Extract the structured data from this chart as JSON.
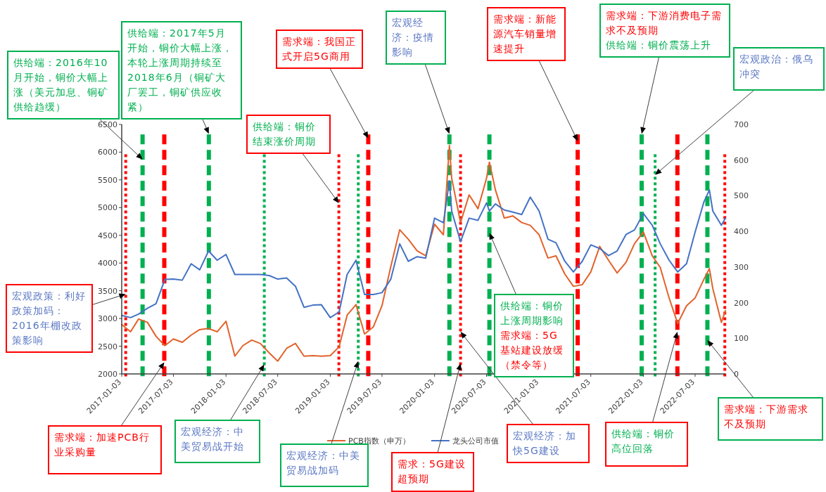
{
  "chart_data": {
    "type": "line",
    "legend": "bottom",
    "grid": false,
    "marker": "none",
    "line_style": "solid",
    "x": [
      "2017-01-03",
      "2017-02-03",
      "2017-03-03",
      "2017-04-03",
      "2017-05-03",
      "2017-06-03",
      "2017-07-03",
      "2017-08-03",
      "2017-09-03",
      "2017-10-03",
      "2017-11-03",
      "2017-12-03",
      "2018-01-03",
      "2018-02-03",
      "2018-03-03",
      "2018-04-03",
      "2018-05-03",
      "2018-06-03",
      "2018-07-03",
      "2018-08-03",
      "2018-09-03",
      "2018-10-03",
      "2018-11-03",
      "2018-12-03",
      "2019-01-03",
      "2019-02-03",
      "2019-03-03",
      "2019-04-03",
      "2019-05-03",
      "2019-06-03",
      "2019-07-03",
      "2019-08-03",
      "2019-09-03",
      "2019-10-03",
      "2019-11-03",
      "2019-12-03",
      "2020-01-03",
      "2020-02-03",
      "2020-02-24",
      "2020-03-03",
      "2020-04-03",
      "2020-05-03",
      "2020-06-03",
      "2020-07-03",
      "2020-07-13",
      "2020-08-03",
      "2020-09-03",
      "2020-10-03",
      "2020-11-03",
      "2020-12-03",
      "2021-01-03",
      "2021-02-03",
      "2021-03-03",
      "2021-04-03",
      "2021-05-03",
      "2021-06-03",
      "2021-07-03",
      "2021-08-03",
      "2021-09-03",
      "2021-10-03",
      "2021-11-03",
      "2021-12-03",
      "2022-01-03",
      "2022-02-03",
      "2022-03-03",
      "2022-04-03",
      "2022-05-03",
      "2022-06-03",
      "2022-07-03",
      "2022-08-03",
      "2022-08-22",
      "2022-09-03",
      "2022-10-03",
      "2022-10-17"
    ],
    "series": [
      {
        "name": "PCB指数（申万）",
        "color": "#e2622b",
        "values": [
          2890,
          2760,
          2990,
          2930,
          2680,
          2510,
          2630,
          2570,
          2700,
          2800,
          2820,
          2760,
          2950,
          2320,
          2510,
          2610,
          2550,
          2380,
          2230,
          2460,
          2550,
          2320,
          2330,
          2320,
          2330,
          2490,
          3060,
          3250,
          2720,
          2850,
          3230,
          3940,
          4600,
          4430,
          4220,
          4130,
          4700,
          4510,
          6120,
          5530,
          4730,
          5230,
          4980,
          5530,
          5820,
          5320,
          4810,
          4850,
          4730,
          4680,
          4510,
          4090,
          4130,
          3800,
          3580,
          3610,
          3840,
          4300,
          4050,
          3820,
          4010,
          4350,
          4560,
          4130,
          3920,
          3370,
          2910,
          3230,
          3370,
          3710,
          3900,
          3540,
          2930,
          3140
        ]
      },
      {
        "name": "龙头公司市值",
        "color": "#4472c4",
        "axis": "y2",
        "values": [
          164,
          158,
          168,
          184,
          197,
          265,
          266,
          263,
          309,
          292,
          345,
          319,
          335,
          279,
          279,
          279,
          279,
          276,
          266,
          269,
          246,
          187,
          193,
          194,
          158,
          174,
          279,
          319,
          223,
          223,
          228,
          266,
          365,
          316,
          329,
          325,
          437,
          424,
          542,
          457,
          371,
          437,
          431,
          480,
          457,
          477,
          460,
          454,
          447,
          496,
          457,
          378,
          368,
          316,
          286,
          316,
          362,
          352,
          332,
          345,
          391,
          404,
          450,
          417,
          365,
          319,
          286,
          309,
          398,
          483,
          516,
          457,
          417,
          437
        ]
      }
    ],
    "xlim": [
      "2017-01-03",
      "2022-10-17"
    ],
    "xticks": [
      "2017-01-03",
      "2017-07-03",
      "2018-01-03",
      "2018-07-03",
      "2019-01-03",
      "2019-07-03",
      "2020-01-03",
      "2020-07-03",
      "2021-01-03",
      "2021-07-03",
      "2022-01-03",
      "2022-07-03"
    ],
    "ylim": [
      2000,
      6500
    ],
    "yticks": [
      2000,
      2500,
      3000,
      3500,
      4000,
      4500,
      5000,
      5500,
      6000,
      6500
    ],
    "y2lim": [
      0,
      700
    ],
    "y2ticks": [
      0,
      100,
      200,
      300,
      400,
      500,
      600,
      700
    ],
    "ref_lines": [
      {
        "axis": "x",
        "value": "2017-01-17",
        "color": "#ff0000",
        "line_style": "dotted"
      },
      {
        "axis": "x",
        "value": "2017-03-17",
        "color": "#00b050",
        "line_style": "dashed"
      },
      {
        "axis": "x",
        "value": "2017-06-01",
        "color": "#ff0000",
        "line_style": "dashed"
      },
      {
        "axis": "x",
        "value": "2017-11-04",
        "color": "#00b050",
        "line_style": "dashed"
      },
      {
        "axis": "x",
        "value": "2018-05-17",
        "color": "#00b050",
        "line_style": "dotted"
      },
      {
        "axis": "x",
        "value": "2019-02-02",
        "color": "#ff0000",
        "line_style": "dotted"
      },
      {
        "axis": "x",
        "value": "2019-04-11",
        "color": "#00b050",
        "line_style": "dotted"
      },
      {
        "axis": "x",
        "value": "2019-05-16",
        "color": "#ff0000",
        "line_style": "dashed"
      },
      {
        "axis": "x",
        "value": "2020-02-24",
        "color": "#00b050",
        "line_style": "dashed"
      },
      {
        "axis": "x",
        "value": "2020-04-03",
        "color": "#ff0000",
        "line_style": "dotted"
      },
      {
        "axis": "x",
        "value": "2020-07-13",
        "color": "#00b050",
        "line_style": "dashed"
      },
      {
        "axis": "x",
        "value": "2021-05-18",
        "color": "#ff0000",
        "line_style": "dashed"
      },
      {
        "axis": "x",
        "value": "2021-12-28",
        "color": "#00b050",
        "line_style": "dashed"
      },
      {
        "axis": "x",
        "value": "2022-02-13",
        "color": "#00b050",
        "line_style": "dotted"
      },
      {
        "axis": "x",
        "value": "2022-05-02",
        "color": "#ff0000",
        "line_style": "dashed"
      },
      {
        "axis": "x",
        "value": "2022-08-15",
        "color": "#00b050",
        "line_style": "dashed"
      },
      {
        "axis": "x",
        "value": "2022-10-15",
        "color": "#ff0000",
        "line_style": "dotted"
      }
    ],
    "annotations": [
      {
        "text": "供给端：2016年10月开始，铜价大幅上涨（美元加息、铜矿供给趋缓）",
        "x": "2017-03-17",
        "y": 5870
      },
      {
        "text": "供给端：2017年5月开始，铜价大幅上涨，本轮上涨周期持续至2018年6月（铜矿大厂罢工，铜矿供应收紧）",
        "x": "2017-11-04",
        "y": 6330
      },
      {
        "text": "需求端：我国正式开启5G商用",
        "x": "2019-05-16",
        "y": 6250
      },
      {
        "text": "供给端：铜价结束涨价周期",
        "x": "2019-02-02",
        "y": 5080
      },
      {
        "text": "宏观经济：疫情影响",
        "x": "2020-02-24",
        "y": 6330
      },
      {
        "text": "需求端：新能源汽车销量增速提升",
        "x": "2021-05-18",
        "y": 6200
      },
      "需求端：下游消费电子需求不及预期",
      {
        "text": "供给端：铜价震荡上升",
        "x": "2021-12-28",
        "y": 6330
      },
      {
        "text": "宏观政治：俄乌冲突",
        "x": "2022-02-13",
        "y": 5590
      },
      {
        "text": "宏观政策：利好政策加码：2016年棚改政策影响",
        "x": "2017-01-17",
        "y": 3440
      },
      {
        "text": "需求端：加速PCB行业采购量",
        "x": "2017-06-01",
        "y": 2210
      },
      {
        "text": "宏观经济：中美贸易战开始",
        "x": "2018-05-17",
        "y": 2170
      },
      {
        "text": "宏观经济：中美贸易战加码",
        "x": "2019-04-11",
        "y": 2230
      },
      {
        "text": "需求：5G建设超预期",
        "x": "2020-04-03",
        "y": 2190
      },
      {
        "text": "宏观经济：加快5G建设",
        "x": "2020-04-03",
        "y": 2760
      },
      {
        "text": "供给端：铜价上涨周期影响",
        "x": "2020-07-13",
        "y": 4540
      },
      "需求端：5G基站建设放缓（禁令等）",
      {
        "text": "供给端：铜价高位回落",
        "x": "2022-05-02",
        "y": 2760
      },
      {
        "text": "需求端：下游需求不及预期",
        "x": "2022-08-15",
        "y": 2610
      }
    ]
  }
}
